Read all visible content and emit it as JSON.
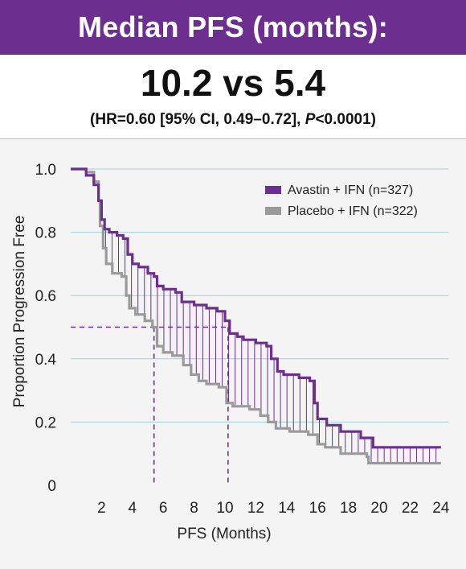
{
  "header": {
    "banner_title": "Median PFS (months):",
    "headline": "10.2 vs 5.4",
    "hr_prefix": "(HR=0.60 [95% CI, 0.49–0.72], ",
    "hr_p": "P",
    "hr_suffix": "<0.0001)"
  },
  "colors": {
    "banner": "#6c2f8f",
    "avastin": "#6c2f8f",
    "placebo": "#9a9a9a",
    "grid": "#9fd0d8",
    "median_line": "#6c2f8f"
  },
  "chart_data": {
    "type": "line",
    "title": "",
    "xlabel": "PFS (Months)",
    "ylabel": "Proportion Progression Free",
    "xlim": [
      0,
      24.5
    ],
    "ylim": [
      0,
      1.0
    ],
    "x_ticks": [
      2,
      4,
      6,
      8,
      10,
      12,
      14,
      16,
      18,
      20,
      22,
      24
    ],
    "y_ticks": [
      0,
      0.2,
      0.4,
      0.6,
      0.8,
      1.0
    ],
    "y_tick_labels": [
      "0",
      "0.2",
      "0.4",
      "0.6",
      "0.8",
      "1.0"
    ],
    "grid": "horizontal",
    "legend_position": "top-right",
    "series": [
      {
        "name": "Avastin + IFN (n=327)",
        "step": true,
        "points": [
          [
            0,
            1.0
          ],
          [
            0.6,
            1.0
          ],
          [
            1.0,
            0.98
          ],
          [
            1.5,
            0.95
          ],
          [
            1.8,
            0.9
          ],
          [
            2.0,
            0.84
          ],
          [
            2.2,
            0.81
          ],
          [
            2.5,
            0.8
          ],
          [
            3.0,
            0.79
          ],
          [
            3.4,
            0.78
          ],
          [
            3.7,
            0.73
          ],
          [
            4.0,
            0.7
          ],
          [
            4.4,
            0.69
          ],
          [
            5.0,
            0.67
          ],
          [
            5.4,
            0.66
          ],
          [
            5.6,
            0.63
          ],
          [
            6.0,
            0.62
          ],
          [
            6.8,
            0.61
          ],
          [
            7.2,
            0.58
          ],
          [
            8.0,
            0.57
          ],
          [
            8.8,
            0.56
          ],
          [
            9.5,
            0.55
          ],
          [
            10.0,
            0.52
          ],
          [
            10.3,
            0.48
          ],
          [
            10.8,
            0.47
          ],
          [
            11.2,
            0.46
          ],
          [
            12.0,
            0.45
          ],
          [
            12.7,
            0.44
          ],
          [
            13.0,
            0.4
          ],
          [
            13.4,
            0.36
          ],
          [
            13.8,
            0.35
          ],
          [
            14.8,
            0.34
          ],
          [
            15.5,
            0.33
          ],
          [
            15.8,
            0.26
          ],
          [
            16.0,
            0.21
          ],
          [
            16.6,
            0.19
          ],
          [
            17.5,
            0.17
          ],
          [
            18.8,
            0.15
          ],
          [
            19.6,
            0.12
          ],
          [
            24,
            0.12
          ]
        ]
      },
      {
        "name": "Placebo + IFN (n=322)",
        "step": true,
        "points": [
          [
            0,
            1.0
          ],
          [
            0.6,
            1.0
          ],
          [
            1.0,
            0.99
          ],
          [
            1.5,
            0.96
          ],
          [
            1.8,
            0.9
          ],
          [
            1.9,
            0.82
          ],
          [
            2.1,
            0.75
          ],
          [
            2.3,
            0.7
          ],
          [
            2.7,
            0.67
          ],
          [
            3.3,
            0.66
          ],
          [
            3.6,
            0.6
          ],
          [
            3.8,
            0.56
          ],
          [
            4.2,
            0.54
          ],
          [
            4.8,
            0.52
          ],
          [
            5.3,
            0.5
          ],
          [
            5.6,
            0.44
          ],
          [
            6.0,
            0.42
          ],
          [
            6.6,
            0.41
          ],
          [
            7.3,
            0.38
          ],
          [
            7.8,
            0.35
          ],
          [
            8.3,
            0.33
          ],
          [
            8.8,
            0.32
          ],
          [
            9.6,
            0.31
          ],
          [
            10.1,
            0.26
          ],
          [
            10.5,
            0.25
          ],
          [
            11.6,
            0.24
          ],
          [
            12.3,
            0.22
          ],
          [
            12.8,
            0.2
          ],
          [
            13.3,
            0.18
          ],
          [
            14.2,
            0.17
          ],
          [
            15.4,
            0.16
          ],
          [
            16.0,
            0.13
          ],
          [
            16.5,
            0.12
          ],
          [
            17.5,
            0.1
          ],
          [
            19.2,
            0.09
          ],
          [
            19.3,
            0.07
          ],
          [
            24,
            0.07
          ]
        ]
      }
    ],
    "medians": [
      {
        "x": 5.4,
        "y": 0.5
      },
      {
        "x": 10.2,
        "y": 0.5
      }
    ]
  }
}
